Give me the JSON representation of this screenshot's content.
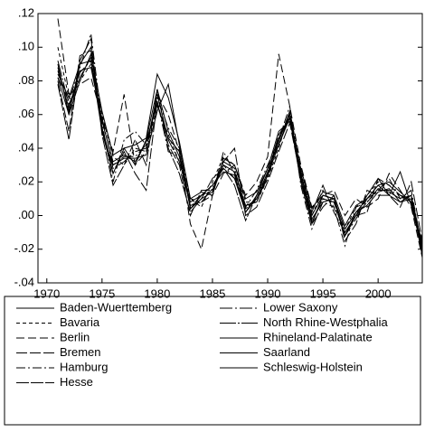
{
  "chart_data": {
    "type": "line",
    "x": [
      1971,
      1972,
      1973,
      1974,
      1975,
      1976,
      1977,
      1978,
      1979,
      1980,
      1981,
      1982,
      1983,
      1984,
      1985,
      1986,
      1987,
      1988,
      1989,
      1990,
      1991,
      1992,
      1993,
      1994,
      1995,
      1996,
      1997,
      1998,
      1999,
      2000,
      2001,
      2002,
      2003,
      2004
    ],
    "xlim": [
      1969.2,
      2004
    ],
    "xticks": [
      1970,
      1975,
      1980,
      1985,
      1990,
      1995,
      2000
    ],
    "ylim": [
      -0.04,
      0.12
    ],
    "yticks": [
      {
        "value": -0.04,
        "label": "-.04"
      },
      {
        "value": -0.02,
        "label": "-.02"
      },
      {
        "value": 0,
        "label": ".00"
      },
      {
        "value": 0.02,
        "label": ".02"
      },
      {
        "value": 0.04,
        "label": ".04"
      },
      {
        "value": 0.06,
        "label": ".06"
      },
      {
        "value": 0.08,
        "label": ".08"
      },
      {
        "value": 0.1,
        "label": ".10"
      },
      {
        "value": 0.12,
        "label": ".12"
      }
    ],
    "series": [
      {
        "name": "Baden-Wuerttemberg",
        "color": "#000000",
        "dash": "",
        "values": [
          0.09,
          0.06,
          0.09,
          0.1,
          0.05,
          0.025,
          0.04,
          0.03,
          0.045,
          0.075,
          0.05,
          0.035,
          0.008,
          0.012,
          0.018,
          0.028,
          0.022,
          0.002,
          0.012,
          0.028,
          0.042,
          0.058,
          0.02,
          -0.005,
          0.012,
          0.01,
          -0.012,
          0.002,
          0.01,
          0.018,
          0.012,
          0.008,
          0.012,
          -0.022
        ]
      },
      {
        "name": "Bavaria",
        "color": "#000000",
        "dash": "4 3",
        "values": [
          0.1,
          0.07,
          0.08,
          0.09,
          0.06,
          0.035,
          0.03,
          0.04,
          0.038,
          0.065,
          0.048,
          0.032,
          0.01,
          0.005,
          0.02,
          0.035,
          0.03,
          0.008,
          0.008,
          0.022,
          0.04,
          0.062,
          0.028,
          0.0,
          0.015,
          0.005,
          -0.008,
          0.005,
          0.012,
          0.02,
          0.018,
          0.012,
          0.008,
          -0.018
        ]
      },
      {
        "name": "Berlin",
        "color": "#000000",
        "dash": "9 4",
        "values": [
          0.117,
          0.072,
          0.078,
          0.082,
          0.058,
          0.038,
          0.072,
          0.03,
          0.038,
          0.072,
          0.06,
          0.038,
          -0.005,
          -0.02,
          0.012,
          0.025,
          0.03,
          0.012,
          0.02,
          0.035,
          0.096,
          0.065,
          0.03,
          0.005,
          0.012,
          0.015,
          0.0,
          0.01,
          0.005,
          0.01,
          0.025,
          0.015,
          0.005,
          -0.025
        ]
      },
      {
        "name": "Bremen",
        "color": "#000000",
        "dash": "12 3",
        "values": [
          0.08,
          0.05,
          0.095,
          0.098,
          0.052,
          0.025,
          0.038,
          0.025,
          0.015,
          0.068,
          0.042,
          0.03,
          0.0,
          0.015,
          0.015,
          0.032,
          0.04,
          0.0,
          0.005,
          0.02,
          0.038,
          0.055,
          0.022,
          -0.005,
          0.005,
          0.012,
          -0.015,
          -0.005,
          0.015,
          0.012,
          0.012,
          0.005,
          0.02,
          -0.015
        ]
      },
      {
        "name": "Hamburg",
        "color": "#000000",
        "dash": "10 3 2 3",
        "values": [
          0.082,
          0.068,
          0.088,
          0.108,
          0.055,
          0.02,
          0.045,
          0.05,
          0.042,
          0.07,
          0.052,
          0.04,
          0.01,
          0.008,
          0.012,
          0.038,
          0.025,
          0.005,
          0.015,
          0.03,
          0.045,
          0.065,
          0.018,
          -0.008,
          0.008,
          0.005,
          -0.018,
          0.005,
          0.008,
          0.015,
          0.022,
          0.01,
          0.015,
          -0.02
        ]
      },
      {
        "name": "Hesse",
        "color": "#000000",
        "dash": "14 2",
        "values": [
          0.078,
          0.045,
          0.092,
          0.105,
          0.048,
          0.018,
          0.03,
          0.045,
          0.03,
          0.075,
          0.04,
          0.025,
          0.002,
          0.01,
          0.022,
          0.028,
          0.018,
          -0.003,
          0.012,
          0.025,
          0.048,
          0.058,
          0.025,
          0.002,
          0.018,
          0.002,
          -0.01,
          0.0,
          0.002,
          0.022,
          0.018,
          0.012,
          0.008,
          -0.022
        ]
      },
      {
        "name": "Lower Saxony",
        "color": "#000000",
        "dash": "14 3 2 3",
        "values": [
          0.088,
          0.062,
          0.085,
          0.092,
          0.058,
          0.03,
          0.035,
          0.035,
          0.042,
          0.068,
          0.038,
          0.035,
          0.005,
          0.012,
          0.015,
          0.03,
          0.022,
          0.005,
          0.01,
          0.022,
          0.045,
          0.06,
          0.025,
          -0.003,
          0.01,
          0.008,
          -0.012,
          -0.002,
          0.01,
          0.015,
          0.015,
          0.012,
          0.01,
          -0.02
        ]
      },
      {
        "name": "North Rhine-Westphalia",
        "color": "#000000",
        "dash": "18 2 2 2",
        "values": [
          0.092,
          0.066,
          0.082,
          0.094,
          0.052,
          0.028,
          0.032,
          0.038,
          0.04,
          0.072,
          0.045,
          0.032,
          0.006,
          0.008,
          0.016,
          0.032,
          0.028,
          0.004,
          0.01,
          0.026,
          0.044,
          0.062,
          0.026,
          -0.004,
          0.01,
          0.008,
          -0.01,
          0.0,
          0.008,
          0.016,
          0.014,
          0.01,
          0.012,
          -0.018
        ]
      },
      {
        "name": "Rhineland-Palatinate",
        "color": "#000000",
        "dash": "",
        "values": [
          0.086,
          0.064,
          0.086,
          0.088,
          0.056,
          0.032,
          0.036,
          0.032,
          0.044,
          0.066,
          0.046,
          0.038,
          0.004,
          0.01,
          0.014,
          0.03,
          0.026,
          0.006,
          0.008,
          0.024,
          0.046,
          0.058,
          0.024,
          0.0,
          0.012,
          0.01,
          -0.008,
          0.002,
          0.006,
          0.014,
          0.016,
          0.008,
          0.01,
          -0.024
        ]
      },
      {
        "name": "Saarland",
        "color": "#000000",
        "dash": "",
        "values": [
          0.082,
          0.06,
          0.08,
          0.096,
          0.062,
          0.036,
          0.04,
          0.042,
          0.046,
          0.084,
          0.07,
          0.044,
          0.01,
          0.014,
          0.012,
          0.034,
          0.03,
          0.01,
          0.014,
          0.028,
          0.05,
          0.056,
          0.028,
          0.004,
          0.014,
          0.012,
          -0.006,
          0.006,
          0.01,
          0.018,
          0.02,
          0.014,
          0.008,
          -0.016
        ]
      },
      {
        "name": "Schleswig-Holstein",
        "color": "#000000",
        "dash": "",
        "values": [
          0.084,
          0.07,
          0.09,
          0.092,
          0.05,
          0.03,
          0.034,
          0.034,
          0.036,
          0.062,
          0.078,
          0.042,
          0.004,
          0.012,
          0.018,
          0.026,
          0.024,
          0.002,
          0.01,
          0.024,
          0.042,
          0.06,
          0.022,
          -0.002,
          0.008,
          0.01,
          -0.012,
          0.0,
          0.012,
          0.022,
          0.012,
          0.026,
          0.006,
          -0.02
        ]
      }
    ]
  }
}
